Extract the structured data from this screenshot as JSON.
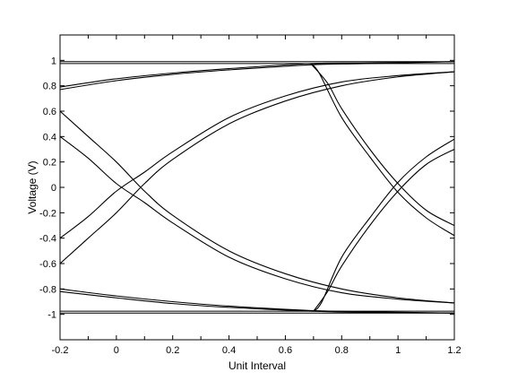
{
  "chart_data": {
    "type": "line",
    "title": "",
    "xlabel": "Unit Interval",
    "ylabel": "Voltage (V)",
    "xlim": [
      -0.2,
      1.2
    ],
    "ylim": [
      -1.2,
      1.2
    ],
    "x_major_ticks": [
      -0.2,
      0,
      0.2,
      0.4,
      0.6,
      0.8,
      1,
      1.2
    ],
    "x_minor_ticks": [
      -0.1,
      0.1,
      0.3,
      0.5,
      0.7,
      0.9,
      1.1
    ],
    "x_tick_labels": [
      "-0.2",
      "0",
      "0.2",
      "0.4",
      "0.6",
      "0.8",
      "1",
      "1.2"
    ],
    "y_ticks": [
      -1,
      -0.8,
      -0.6,
      -0.4,
      -0.2,
      0,
      0.2,
      0.4,
      0.6,
      0.8,
      1
    ],
    "y_tick_labels": [
      "-1",
      "-0.8",
      "-0.6",
      "-0.4",
      "-0.2",
      "0",
      "0.2",
      "0.4",
      "0.6",
      "0.8",
      "1"
    ],
    "grid": false,
    "legend": "none",
    "line_color": "#000000",
    "series": [
      {
        "x": [
          -0.2,
          0.69,
          1.2
        ],
        "y": [
          0.99,
          0.99,
          0.99
        ]
      },
      {
        "x": [
          -0.2,
          0.69,
          1.2
        ],
        "y": [
          0.975,
          0.975,
          0.975
        ]
      },
      {
        "x": [
          -0.2,
          0.7,
          1.2
        ],
        "y": [
          -0.99,
          -0.99,
          -0.99
        ]
      },
      {
        "x": [
          -0.2,
          0.7,
          1.2
        ],
        "y": [
          -0.975,
          -0.975,
          -0.975
        ]
      },
      {
        "x": [
          -0.2,
          0,
          0.2,
          0.4,
          0.69,
          0.9,
          1.2
        ],
        "y": [
          0.77,
          0.84,
          0.89,
          0.925,
          0.965,
          0.975,
          0.99
        ]
      },
      {
        "x": [
          -0.2,
          0,
          0.2,
          0.4,
          0.69,
          0.9,
          1.2
        ],
        "y": [
          0.79,
          0.855,
          0.9,
          0.935,
          0.975,
          0.98,
          0.99
        ]
      },
      {
        "x": [
          -0.2,
          0,
          0.2,
          0.4,
          0.69,
          0.9,
          1.2
        ],
        "y": [
          -0.8,
          -0.855,
          -0.9,
          -0.935,
          -0.97,
          -0.98,
          -0.99
        ]
      },
      {
        "x": [
          -0.2,
          0,
          0.2,
          0.4,
          0.69,
          0.9,
          1.2
        ],
        "y": [
          -0.82,
          -0.87,
          -0.915,
          -0.945,
          -0.975,
          -0.985,
          -0.99
        ]
      },
      {
        "x": [
          -0.2,
          -0.1,
          0,
          0.1,
          0.2,
          0.4,
          0.6,
          0.8,
          1.0,
          1.2
        ],
        "y": [
          -0.6,
          -0.4,
          -0.2,
          0.03,
          0.22,
          0.5,
          0.68,
          0.8,
          0.87,
          0.91
        ]
      },
      {
        "x": [
          -0.2,
          -0.1,
          0,
          0.1,
          0.2,
          0.4,
          0.6,
          0.8,
          1.0,
          1.2
        ],
        "y": [
          -0.4,
          -0.23,
          -0.03,
          0.12,
          0.28,
          0.55,
          0.72,
          0.83,
          0.88,
          0.91
        ]
      },
      {
        "x": [
          -0.2,
          -0.1,
          0,
          0.1,
          0.2,
          0.4,
          0.6,
          0.8,
          1.0,
          1.2
        ],
        "y": [
          0.6,
          0.4,
          0.2,
          -0.03,
          -0.22,
          -0.5,
          -0.68,
          -0.8,
          -0.87,
          -0.91
        ]
      },
      {
        "x": [
          -0.2,
          -0.1,
          0,
          0.1,
          0.2,
          0.4,
          0.6,
          0.8,
          1.0,
          1.2
        ],
        "y": [
          0.4,
          0.23,
          0.03,
          -0.12,
          -0.28,
          -0.55,
          -0.72,
          -0.83,
          -0.88,
          -0.91
        ]
      },
      {
        "x": [
          0.69,
          0.75,
          0.8,
          0.9,
          1.0,
          1.1,
          1.2
        ],
        "y": [
          0.975,
          0.82,
          0.62,
          0.3,
          0.03,
          -0.18,
          -0.3
        ]
      },
      {
        "x": [
          0.69,
          0.72,
          0.8,
          0.9,
          1.0,
          1.1,
          1.2
        ],
        "y": [
          0.975,
          0.9,
          0.55,
          0.24,
          -0.04,
          -0.24,
          -0.38
        ]
      },
      {
        "x": [
          0.7,
          0.75,
          0.8,
          0.9,
          1.0,
          1.1,
          1.2
        ],
        "y": [
          -0.975,
          -0.82,
          -0.62,
          -0.3,
          -0.03,
          0.18,
          0.3
        ]
      },
      {
        "x": [
          0.7,
          0.73,
          0.8,
          0.9,
          1.0,
          1.1,
          1.2
        ],
        "y": [
          -0.975,
          -0.9,
          -0.55,
          -0.24,
          0.04,
          0.24,
          0.38
        ]
      }
    ]
  }
}
